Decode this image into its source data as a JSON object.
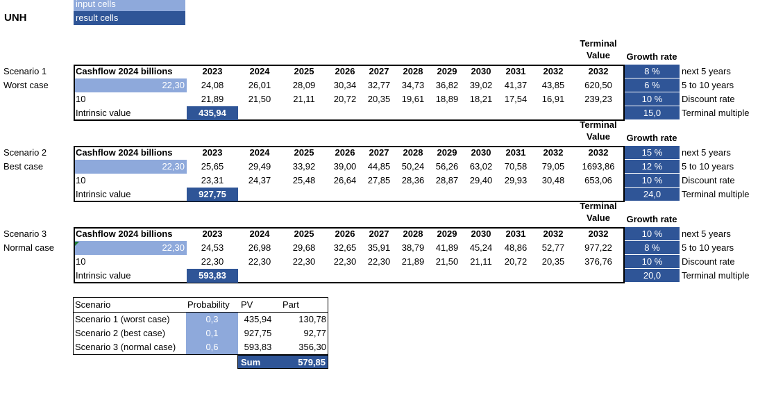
{
  "legend": {
    "input": "input cells",
    "result": "result cells"
  },
  "ticker": "UNH",
  "years": [
    "2023",
    "2024",
    "2025",
    "2026",
    "2027",
    "2028",
    "2029",
    "2030",
    "2031",
    "2032",
    "2032"
  ],
  "terminal_label_1": "Terminal",
  "terminal_label_2": "Value",
  "growth_header": "Growth rate",
  "cashflow_header": "Cashflow 2024 billions",
  "intrinsic_label": "Intrinsic value",
  "param_labels": [
    "next 5 years",
    "5 to 10 years",
    "Discount rate",
    "Terminal multiple"
  ],
  "scenarios": [
    {
      "name": "Scenario 1",
      "case": "Worst case",
      "cashflow": "22,30",
      "years_count": "10",
      "cf_row": [
        "24,08",
        "26,01",
        "28,09",
        "30,34",
        "32,77",
        "34,73",
        "36,82",
        "39,02",
        "41,37",
        "43,85",
        "620,50"
      ],
      "pv_row": [
        "21,89",
        "21,50",
        "21,11",
        "20,72",
        "20,35",
        "19,61",
        "18,89",
        "18,21",
        "17,54",
        "16,91",
        "239,23"
      ],
      "intrinsic": "435,94",
      "params": [
        "8 %",
        "6 %",
        "10 %",
        "15,0"
      ]
    },
    {
      "name": "Scenario 2",
      "case": "Best case",
      "cashflow": "22,30",
      "years_count": "10",
      "cf_row": [
        "25,65",
        "29,49",
        "33,92",
        "39,00",
        "44,85",
        "50,24",
        "56,26",
        "63,02",
        "70,58",
        "79,05",
        "1693,86"
      ],
      "pv_row": [
        "23,31",
        "24,37",
        "25,48",
        "26,64",
        "27,85",
        "28,36",
        "28,87",
        "29,40",
        "29,93",
        "30,48",
        "653,06"
      ],
      "intrinsic": "927,75",
      "params": [
        "15 %",
        "12 %",
        "10 %",
        "24,0"
      ]
    },
    {
      "name": "Scenario 3",
      "case": "Normal case",
      "cashflow": "22,30",
      "years_count": "10",
      "cf_row": [
        "24,53",
        "26,98",
        "29,68",
        "32,65",
        "35,91",
        "38,79",
        "41,89",
        "45,24",
        "48,86",
        "52,77",
        "977,22"
      ],
      "pv_row": [
        "22,30",
        "22,30",
        "22,30",
        "22,30",
        "22,30",
        "21,89",
        "21,50",
        "21,11",
        "20,72",
        "20,35",
        "376,76"
      ],
      "intrinsic": "593,83",
      "params": [
        "10 %",
        "8 %",
        "10 %",
        "20,0"
      ]
    }
  ],
  "summary": {
    "headers": [
      "Scenario",
      "Probability",
      "PV",
      "Part"
    ],
    "rows": [
      {
        "scenario": "Scenario 1 (worst case)",
        "probability": "0,3",
        "pv": "435,94",
        "part": "130,78"
      },
      {
        "scenario": "Scenario 2 (best case)",
        "probability": "0,1",
        "pv": "927,75",
        "part": "92,77"
      },
      {
        "scenario": "Scenario 3 (normal case)",
        "probability": "0,6",
        "pv": "593,83",
        "part": "356,30"
      }
    ],
    "sum_label": "Sum",
    "sum_value": "579,85"
  },
  "colors": {
    "input": "#8ea9db",
    "result": "#2f5597"
  }
}
